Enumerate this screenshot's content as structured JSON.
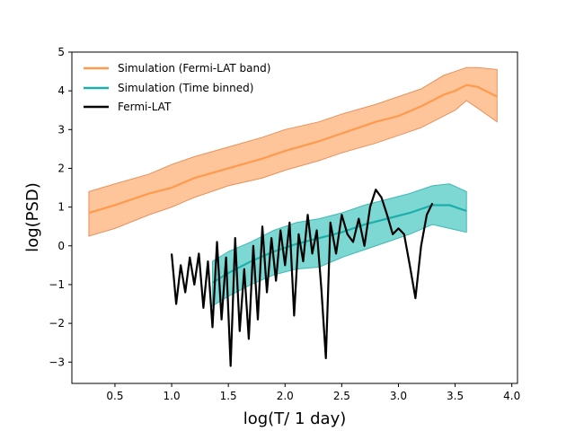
{
  "chart_data": {
    "type": "line",
    "title": "",
    "xlabel": "log(T/ 1 day)",
    "ylabel": "log(PSD)",
    "xlim": [
      0.12,
      4.05
    ],
    "ylim": [
      -3.55,
      5.0
    ],
    "xticks": [
      0.5,
      1.0,
      1.5,
      2.0,
      2.5,
      3.0,
      3.5,
      4.0
    ],
    "xtick_labels": [
      "0.5",
      "1.0",
      "1.5",
      "2.0",
      "2.5",
      "3.0",
      "3.5",
      "4.0"
    ],
    "yticks": [
      -3,
      -2,
      -1,
      0,
      1,
      2,
      3,
      4,
      5
    ],
    "ytick_labels": [
      "−3",
      "−2",
      "−1",
      "0",
      "1",
      "2",
      "3",
      "4",
      "5"
    ],
    "grid": false,
    "legend_position": "top-left",
    "series": [
      {
        "name": "Simulation (Fermi-LAT band)",
        "color": "#ff9a4d",
        "band_color": "#ffc59a",
        "band_edge_color": "#e6915c",
        "x": [
          0.27,
          0.5,
          0.8,
          1.0,
          1.2,
          1.5,
          1.8,
          2.0,
          2.3,
          2.5,
          2.8,
          3.0,
          3.2,
          3.4,
          3.5,
          3.6,
          3.7,
          3.87
        ],
        "y": [
          0.85,
          1.05,
          1.35,
          1.5,
          1.75,
          2.0,
          2.25,
          2.45,
          2.7,
          2.9,
          3.2,
          3.35,
          3.6,
          3.9,
          4.0,
          4.15,
          4.1,
          3.85
        ],
        "lower": [
          0.25,
          0.45,
          0.8,
          1.0,
          1.25,
          1.55,
          1.75,
          1.95,
          2.2,
          2.4,
          2.65,
          2.85,
          3.05,
          3.35,
          3.5,
          3.75,
          3.55,
          3.2
        ],
        "upper": [
          1.4,
          1.6,
          1.85,
          2.1,
          2.3,
          2.55,
          2.8,
          3.0,
          3.2,
          3.4,
          3.65,
          3.85,
          4.05,
          4.4,
          4.5,
          4.6,
          4.6,
          4.55
        ]
      },
      {
        "name": "Simulation (Time binned)",
        "color": "#1aafaa",
        "band_color": "#7dd7d2",
        "band_edge_color": "#40b8b4",
        "x": [
          1.36,
          1.5,
          1.7,
          1.9,
          2.1,
          2.3,
          2.5,
          2.7,
          2.9,
          3.1,
          3.3,
          3.45,
          3.6
        ],
        "y": [
          -0.95,
          -0.7,
          -0.4,
          -0.15,
          0.05,
          0.2,
          0.35,
          0.55,
          0.7,
          0.85,
          1.05,
          1.05,
          0.9
        ],
        "lower": [
          -1.55,
          -1.3,
          -1.0,
          -0.75,
          -0.6,
          -0.55,
          -0.3,
          -0.1,
          0.1,
          0.3,
          0.55,
          0.45,
          0.35
        ],
        "upper": [
          -0.4,
          -0.15,
          0.1,
          0.4,
          0.6,
          0.7,
          0.85,
          1.05,
          1.2,
          1.35,
          1.55,
          1.6,
          1.4
        ]
      },
      {
        "name": "Fermi-LAT",
        "color": "#000000",
        "x": [
          1.0,
          1.04,
          1.08,
          1.12,
          1.16,
          1.2,
          1.24,
          1.28,
          1.32,
          1.36,
          1.4,
          1.44,
          1.48,
          1.52,
          1.56,
          1.6,
          1.64,
          1.68,
          1.72,
          1.76,
          1.8,
          1.84,
          1.88,
          1.92,
          1.96,
          2.0,
          2.04,
          2.08,
          2.12,
          2.16,
          2.2,
          2.24,
          2.28,
          2.32,
          2.36,
          2.4,
          2.45,
          2.5,
          2.55,
          2.6,
          2.65,
          2.7,
          2.75,
          2.8,
          2.85,
          2.9,
          2.95,
          3.0,
          3.05,
          3.1,
          3.15,
          3.2,
          3.25,
          3.3
        ],
        "y": [
          -0.2,
          -1.5,
          -0.5,
          -1.2,
          -0.3,
          -1.0,
          -0.2,
          -1.6,
          -0.4,
          -2.1,
          0.1,
          -1.9,
          -0.3,
          -3.1,
          0.2,
          -2.2,
          -0.6,
          -2.4,
          0.0,
          -1.9,
          0.5,
          -1.2,
          0.2,
          -0.9,
          0.4,
          -0.5,
          0.6,
          -1.8,
          0.3,
          -0.4,
          0.8,
          -0.2,
          0.4,
          -1.1,
          -2.9,
          0.6,
          -0.2,
          0.8,
          0.3,
          0.1,
          0.7,
          0.0,
          1.0,
          1.45,
          1.25,
          0.8,
          0.3,
          0.45,
          0.3,
          -0.5,
          -1.35,
          0.0,
          0.8,
          1.1
        ]
      }
    ]
  }
}
